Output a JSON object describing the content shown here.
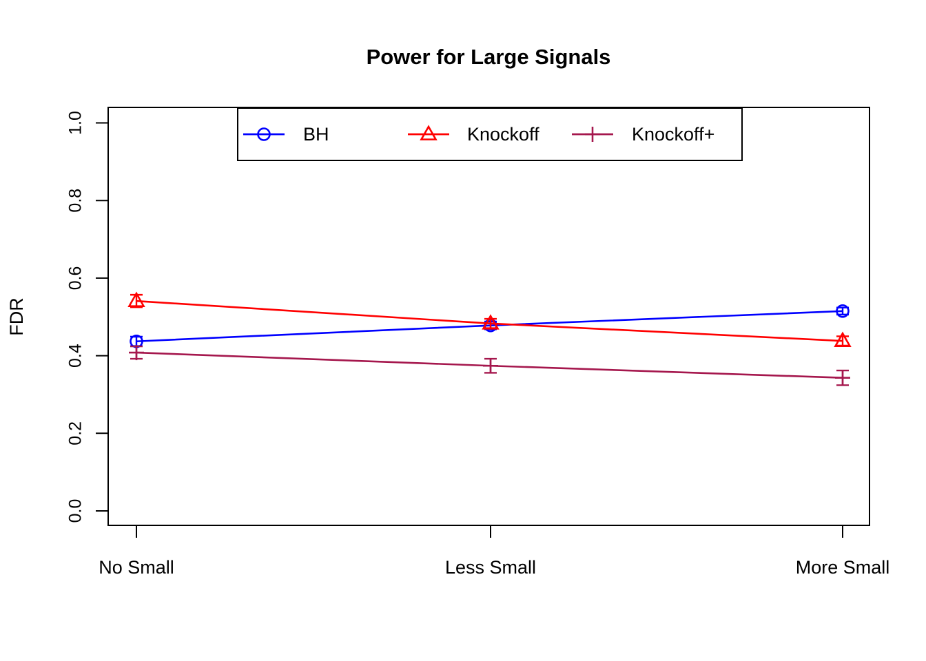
{
  "chart_data": {
    "type": "line",
    "title": "Power for Large Signals",
    "xlabel": "",
    "ylabel": "FDR",
    "categories": [
      "No Small",
      "Less Small",
      "More Small"
    ],
    "yticks": [
      0.0,
      0.2,
      0.4,
      0.6,
      0.8,
      1.0
    ],
    "ylim": [
      0.0,
      1.0
    ],
    "grid": false,
    "legend_position": "top-center-inside",
    "series": [
      {
        "name": "BH",
        "marker": "circle",
        "color": "#0000FF",
        "values": [
          0.437,
          0.478,
          0.515
        ],
        "errors": [
          0.012,
          0.01,
          0.009
        ]
      },
      {
        "name": "Knockoff",
        "marker": "triangle",
        "color": "#FF0000",
        "values": [
          0.541,
          0.483,
          0.438
        ],
        "errors": [
          0.016,
          0.012,
          0.012
        ]
      },
      {
        "name": "Knockoff+",
        "marker": "plus",
        "color": "#A5174D",
        "values": [
          0.408,
          0.374,
          0.343
        ],
        "errors": [
          0.016,
          0.018,
          0.019
        ]
      }
    ]
  }
}
